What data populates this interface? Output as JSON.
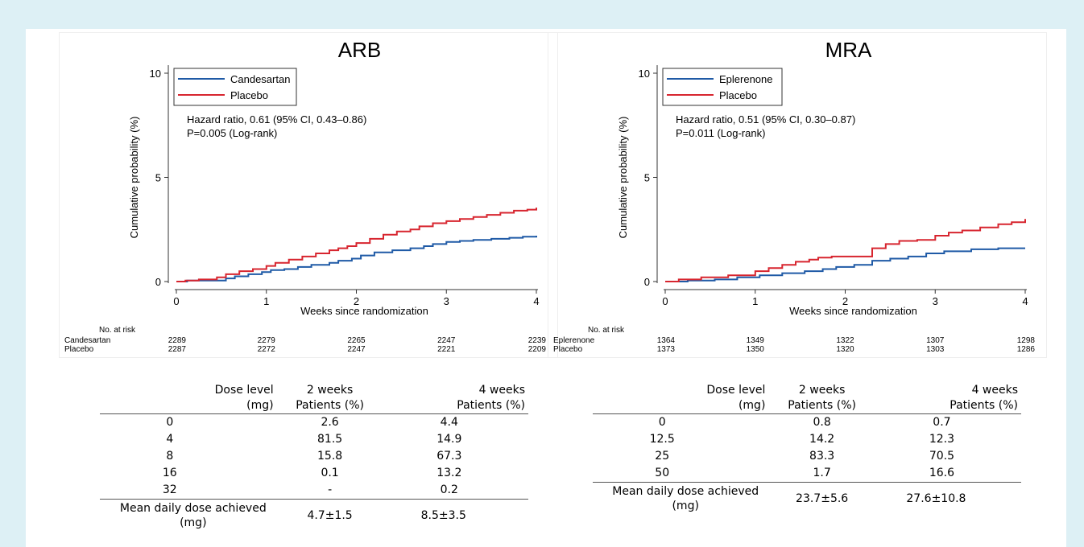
{
  "colors": {
    "treatment": "#1f5aa6",
    "placebo": "#d7252f",
    "background": "#ddf0f5"
  },
  "chart_data": [
    {
      "type": "line",
      "title": "ARB",
      "xlabel": "Weeks since randomization",
      "ylabel": "Cumulative probability (%)",
      "xlim": [
        0,
        4
      ],
      "ylim": [
        0,
        10
      ],
      "xticks": [
        "0",
        "1",
        "2",
        "3",
        "4"
      ],
      "yticks": [
        "0",
        "5",
        "10"
      ],
      "legend_position": "top-left",
      "annotation": [
        "Hazard ratio, 0.61 (95% CI, 0.43–0.86)",
        "P=0.005 (Log-rank)"
      ],
      "series": [
        {
          "name": "Candesartan",
          "color": "#1f5aa6",
          "x": [
            0,
            0.12,
            0.3,
            0.55,
            0.65,
            0.8,
            0.95,
            1.05,
            1.2,
            1.35,
            1.5,
            1.7,
            1.8,
            1.95,
            2.05,
            2.2,
            2.4,
            2.6,
            2.75,
            2.85,
            3.0,
            3.15,
            3.3,
            3.5,
            3.7,
            3.85,
            4.0
          ],
          "y": [
            0,
            0.05,
            0.05,
            0.15,
            0.25,
            0.35,
            0.45,
            0.55,
            0.6,
            0.7,
            0.8,
            0.9,
            1.0,
            1.1,
            1.25,
            1.4,
            1.5,
            1.6,
            1.7,
            1.8,
            1.9,
            1.95,
            2.0,
            2.05,
            2.1,
            2.15,
            2.2
          ]
        },
        {
          "name": "Placebo",
          "color": "#d7252f",
          "x": [
            0,
            0.1,
            0.25,
            0.45,
            0.55,
            0.7,
            0.85,
            1.0,
            1.1,
            1.25,
            1.4,
            1.55,
            1.7,
            1.8,
            1.9,
            2.0,
            2.15,
            2.3,
            2.45,
            2.6,
            2.7,
            2.85,
            3.0,
            3.15,
            3.3,
            3.45,
            3.6,
            3.75,
            3.9,
            4.0
          ],
          "y": [
            0,
            0.05,
            0.1,
            0.2,
            0.35,
            0.5,
            0.6,
            0.75,
            0.9,
            1.05,
            1.2,
            1.35,
            1.5,
            1.6,
            1.7,
            1.85,
            2.05,
            2.25,
            2.4,
            2.5,
            2.65,
            2.8,
            2.9,
            3.0,
            3.1,
            3.2,
            3.3,
            3.4,
            3.45,
            3.55
          ]
        }
      ],
      "risk_table": {
        "header": "No. at risk",
        "rows": [
          {
            "label": "Candesartan",
            "values": [
              "2289",
              "2279",
              "2265",
              "2247",
              "2239"
            ]
          },
          {
            "label": "Placebo",
            "values": [
              "2287",
              "2272",
              "2247",
              "2221",
              "2209"
            ]
          }
        ]
      }
    },
    {
      "type": "line",
      "title": "MRA",
      "xlabel": "Weeks since randomization",
      "ylabel": "Cumulative probability (%)",
      "xlim": [
        0,
        4
      ],
      "ylim": [
        0,
        10
      ],
      "xticks": [
        "0",
        "1",
        "2",
        "3",
        "4"
      ],
      "yticks": [
        "0",
        "5",
        "10"
      ],
      "legend_position": "top-left",
      "annotation": [
        "Hazard ratio, 0.51 (95% CI, 0.30–0.87)",
        "P=0.011 (Log-rank)"
      ],
      "series": [
        {
          "name": "Eplerenone",
          "color": "#1f5aa6",
          "x": [
            0,
            0.25,
            0.55,
            0.8,
            1.05,
            1.3,
            1.55,
            1.75,
            1.9,
            2.1,
            2.3,
            2.5,
            2.7,
            2.9,
            3.1,
            3.4,
            3.7,
            4.0
          ],
          "y": [
            0,
            0.05,
            0.1,
            0.2,
            0.3,
            0.4,
            0.5,
            0.6,
            0.7,
            0.8,
            1.0,
            1.1,
            1.2,
            1.35,
            1.45,
            1.55,
            1.6,
            1.6
          ]
        },
        {
          "name": "Placebo",
          "color": "#d7252f",
          "x": [
            0,
            0.15,
            0.4,
            0.7,
            1.0,
            1.15,
            1.3,
            1.45,
            1.6,
            1.7,
            1.85,
            2.0,
            2.15,
            2.3,
            2.45,
            2.6,
            2.8,
            3.0,
            3.15,
            3.3,
            3.5,
            3.7,
            3.85,
            4.0
          ],
          "y": [
            0,
            0.1,
            0.2,
            0.3,
            0.5,
            0.65,
            0.8,
            0.95,
            1.05,
            1.15,
            1.2,
            1.2,
            1.2,
            1.6,
            1.8,
            1.95,
            2.0,
            2.2,
            2.35,
            2.45,
            2.6,
            2.75,
            2.85,
            3.0
          ]
        }
      ],
      "risk_table": {
        "header": "No. at risk",
        "rows": [
          {
            "label": "Eplerenone",
            "values": [
              "1364",
              "1349",
              "1322",
              "1307",
              "1298"
            ]
          },
          {
            "label": "Placebo",
            "values": [
              "1373",
              "1350",
              "1320",
              "1303",
              "1286"
            ]
          }
        ]
      }
    }
  ],
  "tables": {
    "arb": {
      "headers": [
        {
          "line1": "Dose level",
          "line2": "(mg)"
        },
        {
          "line1": "2 weeks",
          "line2": "Patients (%)"
        },
        {
          "line1": "4 weeks",
          "line2": "Patients (%)"
        }
      ],
      "rows": [
        [
          "0",
          "2.6",
          "4.4"
        ],
        [
          "4",
          "81.5",
          "14.9"
        ],
        [
          "8",
          "15.8",
          "67.3"
        ],
        [
          "16",
          "0.1",
          "13.2"
        ],
        [
          "32",
          "-",
          "0.2"
        ]
      ],
      "mean": {
        "label_line1": "Mean daily dose achieved",
        "label_line2": "(mg)",
        "week2": "4.7±1.5",
        "week4": "8.5±3.5"
      }
    },
    "mra": {
      "headers": [
        {
          "line1": "Dose level",
          "line2": "(mg)"
        },
        {
          "line1": "2 weeks",
          "line2": "Patients (%)"
        },
        {
          "line1": "4 weeks",
          "line2": "Patients (%)"
        }
      ],
      "rows": [
        [
          "0",
          "0.8",
          "0.7"
        ],
        [
          "12.5",
          "14.2",
          "12.3"
        ],
        [
          "25",
          "83.3",
          "70.5"
        ],
        [
          "50",
          "1.7",
          "16.6"
        ]
      ],
      "mean": {
        "label_line1": "Mean daily dose achieved",
        "label_line2": "(mg)",
        "week2": "23.7±5.6",
        "week4": "27.6±10.8"
      }
    }
  }
}
